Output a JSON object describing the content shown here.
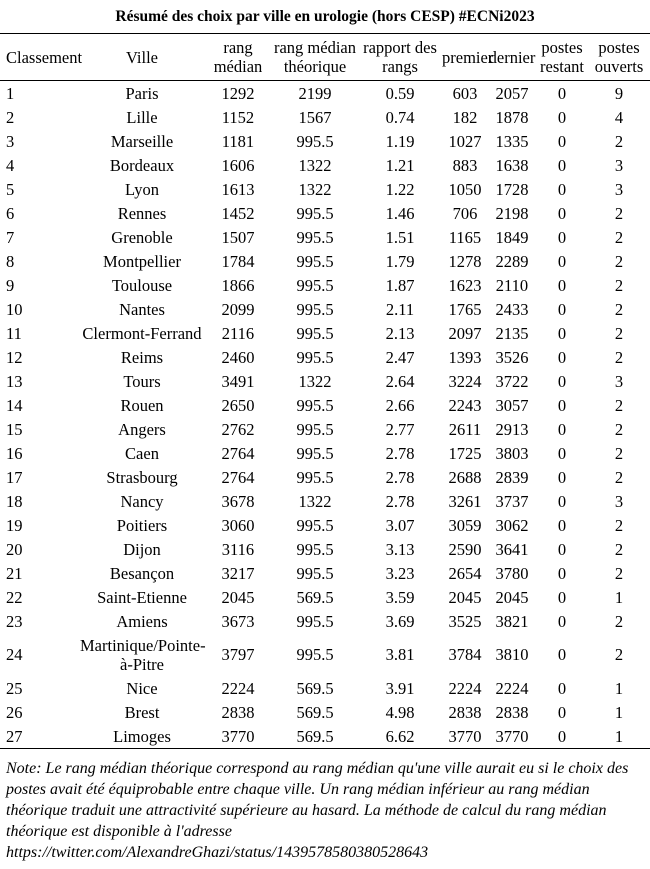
{
  "title": "Résumé des choix par ville en urologie (hors CESP) #ECNi2023",
  "table": {
    "columns": [
      {
        "key": "classement",
        "label": "Classement",
        "align": "left"
      },
      {
        "key": "ville",
        "label": "Ville"
      },
      {
        "key": "rang-median",
        "label": "rang\nmédian"
      },
      {
        "key": "rang-median-theorique",
        "label": "rang médian\nthéorique"
      },
      {
        "key": "rapport-des-rangs",
        "label": "rapport des\nrangs"
      },
      {
        "key": "premier",
        "label": "premier"
      },
      {
        "key": "dernier",
        "label": "dernier"
      },
      {
        "key": "postes-restant",
        "label": "postes\nrestant"
      },
      {
        "key": "postes-ouverts",
        "label": "postes\nouverts"
      }
    ],
    "rows": [
      [
        "1",
        "Paris",
        "1292",
        "2199",
        "0.59",
        "603",
        "2057",
        "0",
        "9"
      ],
      [
        "2",
        "Lille",
        "1152",
        "1567",
        "0.74",
        "182",
        "1878",
        "0",
        "4"
      ],
      [
        "3",
        "Marseille",
        "1181",
        "995.5",
        "1.19",
        "1027",
        "1335",
        "0",
        "2"
      ],
      [
        "4",
        "Bordeaux",
        "1606",
        "1322",
        "1.21",
        "883",
        "1638",
        "0",
        "3"
      ],
      [
        "5",
        "Lyon",
        "1613",
        "1322",
        "1.22",
        "1050",
        "1728",
        "0",
        "3"
      ],
      [
        "6",
        "Rennes",
        "1452",
        "995.5",
        "1.46",
        "706",
        "2198",
        "0",
        "2"
      ],
      [
        "7",
        "Grenoble",
        "1507",
        "995.5",
        "1.51",
        "1165",
        "1849",
        "0",
        "2"
      ],
      [
        "8",
        "Montpellier",
        "1784",
        "995.5",
        "1.79",
        "1278",
        "2289",
        "0",
        "2"
      ],
      [
        "9",
        "Toulouse",
        "1866",
        "995.5",
        "1.87",
        "1623",
        "2110",
        "0",
        "2"
      ],
      [
        "10",
        "Nantes",
        "2099",
        "995.5",
        "2.11",
        "1765",
        "2433",
        "0",
        "2"
      ],
      [
        "11",
        "Clermont-Ferrand",
        "2116",
        "995.5",
        "2.13",
        "2097",
        "2135",
        "0",
        "2"
      ],
      [
        "12",
        "Reims",
        "2460",
        "995.5",
        "2.47",
        "1393",
        "3526",
        "0",
        "2"
      ],
      [
        "13",
        "Tours",
        "3491",
        "1322",
        "2.64",
        "3224",
        "3722",
        "0",
        "3"
      ],
      [
        "14",
        "Rouen",
        "2650",
        "995.5",
        "2.66",
        "2243",
        "3057",
        "0",
        "2"
      ],
      [
        "15",
        "Angers",
        "2762",
        "995.5",
        "2.77",
        "2611",
        "2913",
        "0",
        "2"
      ],
      [
        "16",
        "Caen",
        "2764",
        "995.5",
        "2.78",
        "1725",
        "3803",
        "0",
        "2"
      ],
      [
        "17",
        "Strasbourg",
        "2764",
        "995.5",
        "2.78",
        "2688",
        "2839",
        "0",
        "2"
      ],
      [
        "18",
        "Nancy",
        "3678",
        "1322",
        "2.78",
        "3261",
        "3737",
        "0",
        "3"
      ],
      [
        "19",
        "Poitiers",
        "3060",
        "995.5",
        "3.07",
        "3059",
        "3062",
        "0",
        "2"
      ],
      [
        "20",
        "Dijon",
        "3116",
        "995.5",
        "3.13",
        "2590",
        "3641",
        "0",
        "2"
      ],
      [
        "21",
        "Besançon",
        "3217",
        "995.5",
        "3.23",
        "2654",
        "3780",
        "0",
        "2"
      ],
      [
        "22",
        "Saint-Etienne",
        "2045",
        "569.5",
        "3.59",
        "2045",
        "2045",
        "0",
        "1"
      ],
      [
        "23",
        "Amiens",
        "3673",
        "995.5",
        "3.69",
        "3525",
        "3821",
        "0",
        "2"
      ],
      [
        "24",
        "Martinique/Pointe-\nà-Pitre",
        "3797",
        "995.5",
        "3.81",
        "3784",
        "3810",
        "0",
        "2"
      ],
      [
        "25",
        "Nice",
        "2224",
        "569.5",
        "3.91",
        "2224",
        "2224",
        "0",
        "1"
      ],
      [
        "26",
        "Brest",
        "2838",
        "569.5",
        "4.98",
        "2838",
        "2838",
        "0",
        "1"
      ],
      [
        "27",
        "Limoges",
        "3770",
        "569.5",
        "6.62",
        "3770",
        "3770",
        "0",
        "1"
      ]
    ]
  },
  "note": {
    "lines": [
      "Note: Le rang médian théorique correspond au rang médian qu'une ville aurait eu si le choix des",
      "postes avait été équiprobable entre chaque ville. Un rang médian inférieur au rang médian",
      "théorique traduit une attractivité supérieure au hasard. La méthode de calcul du rang médian",
      "théorique est disponible à l'adresse"
    ],
    "url": "https://twitter.com/AlexandreGhazi/status/1439578580380528643"
  }
}
